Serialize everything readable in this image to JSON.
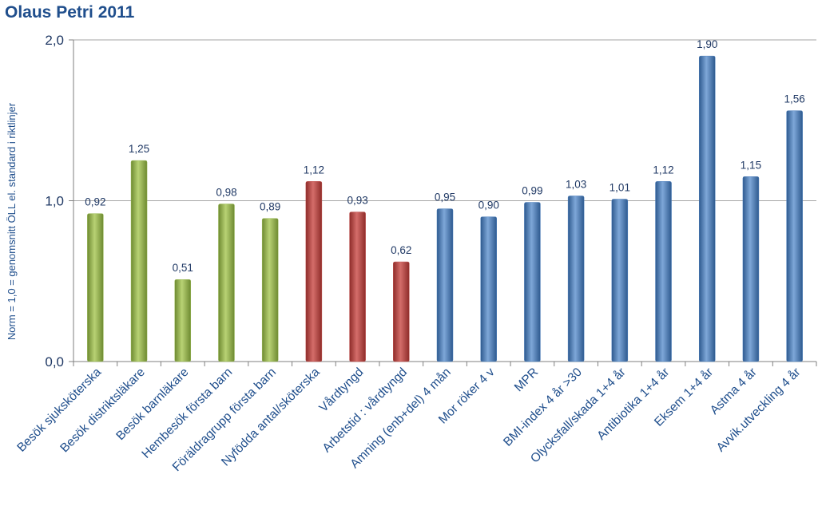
{
  "chart_data": {
    "type": "bar",
    "title": "Olaus Petri 2011",
    "xlabel": "",
    "ylabel": "Norm = 1,0 = genomsnitt ÖLL el. standard i riktlinjer",
    "ylim": [
      0,
      2
    ],
    "yticks": [
      "0,0",
      "1,0",
      "2,0"
    ],
    "grid": true,
    "legend": "none",
    "categories": [
      "Besök sjuksköterska",
      "Besök distriktsläkare",
      "Besök barnläkare",
      "Hembesök första barn",
      "Föräldragrupp första barn",
      "Nyfödda antal/sköterska",
      "Vårdtyngd",
      "Arbetstid : vårdtyngd",
      "Amning (enb+del) 4 mån",
      "Mor röker 4 v",
      "MPR",
      "BMI-index 4 år >30",
      "Olycksfall/skada 1+4 år",
      "Antibiotika 1+4 år",
      "Eksem 1+4 år",
      "Astma 4 år",
      "Avvik.utveckling 4 år"
    ],
    "values": [
      0.92,
      1.25,
      0.51,
      0.98,
      0.89,
      1.12,
      0.93,
      0.62,
      0.95,
      0.9,
      0.99,
      1.03,
      1.01,
      1.12,
      1.9,
      1.15,
      1.56
    ],
    "value_labels": [
      "0,92",
      "1,25",
      "0,51",
      "0,98",
      "0,89",
      "1,12",
      "0,93",
      "0,62",
      "0,95",
      "0,90",
      "0,99",
      "1,03",
      "1,01",
      "1,12",
      "1,90",
      "1,15",
      "1,56"
    ],
    "bar_colors": [
      "green",
      "green",
      "green",
      "green",
      "green",
      "red",
      "red",
      "red",
      "blue",
      "blue",
      "blue",
      "blue",
      "blue",
      "blue",
      "blue",
      "blue",
      "blue"
    ],
    "colors": {
      "green": "#9bbb59",
      "red": "#c0504d",
      "blue": "#4f81bd",
      "title": "#1f4e8c",
      "gridline": "#a6a6a6"
    }
  }
}
